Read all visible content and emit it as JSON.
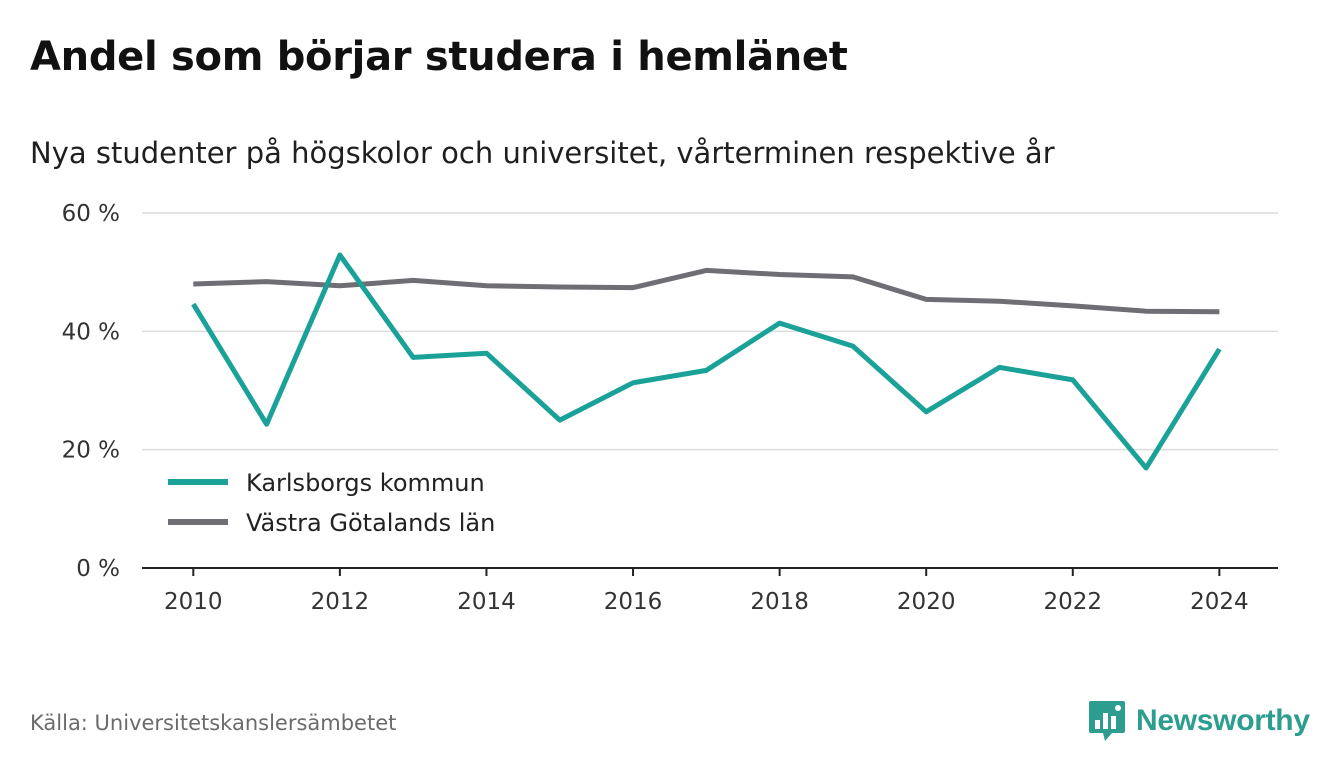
{
  "title": "Andel som börjar studera i hemlänet",
  "subtitle": "Nya studenter på högskolor och universitet, vårterminen respektive år",
  "source": "Källa: Universitetskanslersämbetet",
  "brand": {
    "name": "Newsworthy",
    "icon": "newsworthy-logo-icon",
    "color": "#2d9d8f"
  },
  "chart_data": {
    "type": "line",
    "x": [
      2010,
      2011,
      2012,
      2013,
      2014,
      2015,
      2016,
      2017,
      2018,
      2019,
      2020,
      2021,
      2022,
      2023,
      2024
    ],
    "series": [
      {
        "name": "Karlsborgs kommun",
        "color": "#1aa198",
        "values": [
          44.6,
          24.3,
          52.9,
          35.6,
          36.3,
          25.0,
          31.3,
          33.4,
          41.4,
          37.5,
          26.4,
          33.9,
          31.8,
          16.9,
          37.0
        ]
      },
      {
        "name": "Västra Götalands län",
        "color": "#6f6e75",
        "values": [
          48.0,
          48.4,
          47.7,
          48.6,
          47.7,
          47.5,
          47.4,
          50.3,
          49.6,
          49.2,
          45.4,
          45.1,
          44.3,
          43.4,
          43.3
        ]
      }
    ],
    "xticks": [
      "2010",
      "2012",
      "2014",
      "2016",
      "2018",
      "2020",
      "2022",
      "2024"
    ],
    "xtick_values": [
      2010,
      2012,
      2014,
      2016,
      2018,
      2020,
      2022,
      2024
    ],
    "yticks": [
      "0 %",
      "20 %",
      "40 %",
      "60 %"
    ],
    "ytick_values": [
      0,
      20,
      40,
      60
    ],
    "ylim": [
      0,
      60
    ],
    "xlim": [
      2009.3,
      2024.8
    ],
    "grid": true,
    "legend": "bottom-left",
    "xlabel": "",
    "ylabel": ""
  }
}
